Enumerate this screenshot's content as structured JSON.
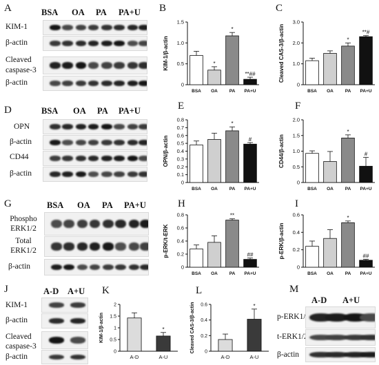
{
  "panel_labels": {
    "A": "A",
    "B": "B",
    "C": "C",
    "D": "D",
    "E": "E",
    "F": "F",
    "G": "G",
    "H": "H",
    "I": "I",
    "J": "J",
    "K": "K",
    "L": "L",
    "M": "M"
  },
  "blots": {
    "lanes4": [
      "BSA",
      "OA",
      "PA",
      "PA+U"
    ],
    "lanesJ": [
      "A-D",
      "A+U"
    ],
    "lanesM": [
      "A-D",
      "A+U"
    ],
    "A": [
      "KIM-1",
      "β-actin",
      "Cleaved caspase-3",
      "β-actin"
    ],
    "D": [
      "OPN",
      "β-actin",
      "CD44",
      "β-actin"
    ],
    "G": [
      "Phospho ERK1/2",
      "Total ERK1/2",
      "β-actin"
    ],
    "J": [
      "KIM-1",
      "β-actin",
      "Cleaved caspase-3",
      "β-actin"
    ],
    "M": [
      "p-ERK1/2",
      "t-ERK1/2",
      "β-actin"
    ]
  },
  "chart_data": [
    {
      "id": "B",
      "type": "bar",
      "categories": [
        "BSA",
        "OA",
        "PA",
        "PA+U"
      ],
      "values": [
        0.7,
        0.35,
        1.17,
        0.13
      ],
      "errors": [
        0.1,
        0.08,
        0.08,
        0.05
      ],
      "colors": [
        "#ffffff",
        "#cfcfcf",
        "#8a8a8a",
        "#111111"
      ],
      "annotations": [
        "",
        "*",
        "*",
        "**##"
      ],
      "ylabel": "KIM-1/β-actin",
      "ylim": [
        0,
        1.5
      ],
      "yticks": [
        "0",
        "0.5",
        "1.0",
        "1.5"
      ],
      "tickvals": [
        0,
        0.5,
        1,
        1.5
      ]
    },
    {
      "id": "C",
      "type": "bar",
      "categories": [
        "BSA",
        "OA",
        "PA",
        "PA+U"
      ],
      "values": [
        1.15,
        1.5,
        1.85,
        2.3
      ],
      "errors": [
        0.12,
        0.12,
        0.15,
        0.05
      ],
      "colors": [
        "#ffffff",
        "#cfcfcf",
        "#8a8a8a",
        "#111111"
      ],
      "annotations": [
        "",
        "",
        "*",
        "**#"
      ],
      "ylabel": "Cleaved CAS-3/β-actin",
      "ylim": [
        0,
        3
      ],
      "yticks": [
        "0",
        "1.0",
        "2.0",
        "3.0"
      ],
      "tickvals": [
        0,
        1,
        2,
        3
      ]
    },
    {
      "id": "E",
      "type": "bar",
      "categories": [
        "BSA",
        "OA",
        "PA",
        "PA+U"
      ],
      "values": [
        0.48,
        0.55,
        0.66,
        0.49
      ],
      "errors": [
        0.05,
        0.08,
        0.05,
        0.02
      ],
      "colors": [
        "#ffffff",
        "#cfcfcf",
        "#8a8a8a",
        "#111111"
      ],
      "annotations": [
        "",
        "",
        "*",
        "#"
      ],
      "ylabel": "OPN/β-actin",
      "ylim": [
        0,
        0.8
      ],
      "yticks": [
        "0",
        "0.1",
        "0.2",
        "0.3",
        "0.4",
        "0.5",
        "0.6",
        "0.7",
        "0.8"
      ],
      "tickvals": [
        0,
        0.1,
        0.2,
        0.3,
        0.4,
        0.5,
        0.6,
        0.7,
        0.8
      ]
    },
    {
      "id": "F",
      "type": "bar",
      "categories": [
        "BSA",
        "OA",
        "PA",
        "PA+U"
      ],
      "values": [
        0.93,
        0.67,
        1.42,
        0.52
      ],
      "errors": [
        0.08,
        0.32,
        0.1,
        0.28
      ],
      "colors": [
        "#ffffff",
        "#cfcfcf",
        "#8a8a8a",
        "#111111"
      ],
      "annotations": [
        "",
        "",
        "*",
        "#"
      ],
      "ylabel": "CD44/β-actin",
      "ylim": [
        0,
        2
      ],
      "yticks": [
        "0",
        "0.5",
        "1.0",
        "1.5",
        "2.0"
      ],
      "tickvals": [
        0,
        0.5,
        1,
        1.5,
        2
      ]
    },
    {
      "id": "H",
      "type": "bar",
      "categories": [
        "BSA",
        "OA",
        "PA",
        "PA+U"
      ],
      "values": [
        0.28,
        0.38,
        0.72,
        0.12
      ],
      "errors": [
        0.06,
        0.1,
        0.02,
        0.02
      ],
      "colors": [
        "#ffffff",
        "#cfcfcf",
        "#8a8a8a",
        "#111111"
      ],
      "annotations": [
        "",
        "",
        "**",
        "##"
      ],
      "ylabel": "p-ERK/t-ERK",
      "ylim": [
        0,
        0.8
      ],
      "yticks": [
        "0",
        "0.2",
        "0.4",
        "0.6",
        "0.8"
      ],
      "tickvals": [
        0,
        0.2,
        0.4,
        0.6,
        0.8
      ]
    },
    {
      "id": "I",
      "type": "bar",
      "categories": [
        "BSA",
        "OA",
        "PA",
        "PA+U"
      ],
      "values": [
        0.24,
        0.33,
        0.51,
        0.08
      ],
      "errors": [
        0.06,
        0.1,
        0.02,
        0.01
      ],
      "colors": [
        "#ffffff",
        "#cfcfcf",
        "#8a8a8a",
        "#111111"
      ],
      "annotations": [
        "",
        "",
        "*",
        "##"
      ],
      "ylabel": "p-ERK/β-actin",
      "ylim": [
        0,
        0.6
      ],
      "yticks": [
        "0",
        "0.2",
        "0.4",
        "0.6"
      ],
      "tickvals": [
        0,
        0.2,
        0.4,
        0.6
      ]
    },
    {
      "id": "K",
      "type": "bar",
      "categories": [
        "A-D",
        "A-U"
      ],
      "values": [
        1.42,
        0.65
      ],
      "errors": [
        0.22,
        0.15
      ],
      "colors": [
        "#dcdcdc",
        "#3a3a3a"
      ],
      "annotations": [
        "",
        "*"
      ],
      "ylabel": "KIM-1/β-actin",
      "ylim": [
        0,
        2
      ],
      "yticks": [
        "0",
        "0.5",
        "1",
        "1.5",
        "2"
      ],
      "tickvals": [
        0,
        0.5,
        1,
        1.5,
        2
      ]
    },
    {
      "id": "L",
      "type": "bar",
      "categories": [
        "A-D",
        "A-U"
      ],
      "values": [
        0.15,
        0.41
      ],
      "errors": [
        0.07,
        0.13
      ],
      "colors": [
        "#dcdcdc",
        "#3a3a3a"
      ],
      "annotations": [
        "",
        "*"
      ],
      "ylabel": "Cleaved CAS-3/β-actin",
      "ylim": [
        0,
        0.6
      ],
      "yticks": [
        "0",
        "0.2",
        "0.4",
        "0.6"
      ],
      "tickvals": [
        0,
        0.2,
        0.4,
        0.6
      ]
    }
  ]
}
